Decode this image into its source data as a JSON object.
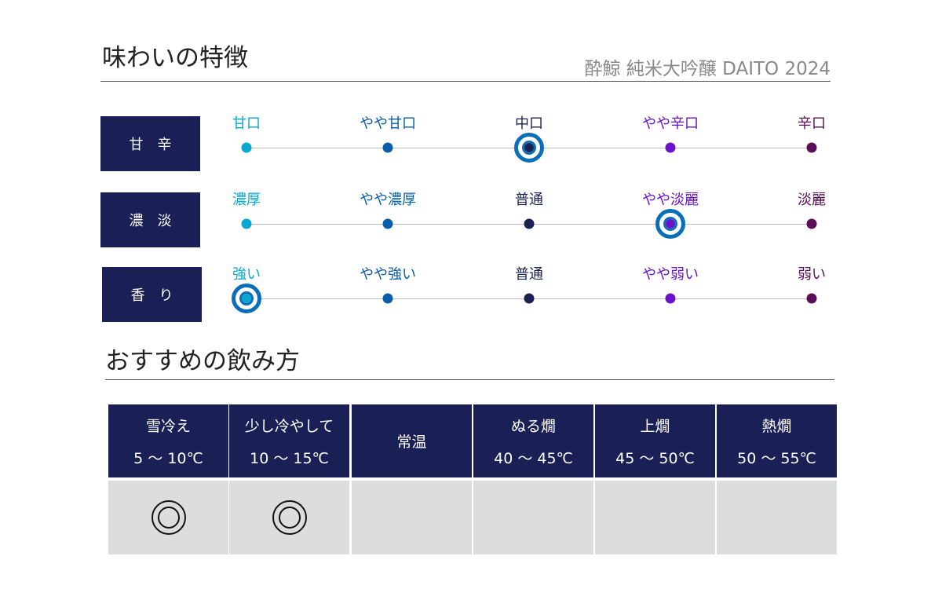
{
  "title": "味わいの特徴",
  "product": "酔鯨 純米大吟醸 DAITO 2024",
  "level_colors": [
    "#0aa7d0",
    "#0a5ea8",
    "#1a2255",
    "#6a12c8",
    "#5a0f5a"
  ],
  "taste_rows": [
    {
      "label": "甘辛",
      "scale": [
        "甘口",
        "やや甘口",
        "中口",
        "やや辛口",
        "辛口"
      ],
      "selected_index": 2
    },
    {
      "label": "濃淡",
      "scale": [
        "濃厚",
        "やや濃厚",
        "普通",
        "やや淡麗",
        "淡麗"
      ],
      "selected_index": 3
    },
    {
      "label": "香り",
      "scale": [
        "強い",
        "やや強い",
        "普通",
        "やや弱い",
        "弱い"
      ],
      "selected_index": 0
    }
  ],
  "serving_title": "おすすめの飲み方",
  "serving": [
    {
      "name": "雪冷え",
      "temp": "5 ～ 10℃",
      "recommended": true
    },
    {
      "name": "少し冷やして",
      "temp": "10 ～ 15℃",
      "recommended": true
    },
    {
      "name": "常温",
      "temp": "",
      "recommended": false
    },
    {
      "name": "ぬる燗",
      "temp": "40 ～ 45℃",
      "recommended": false
    },
    {
      "name": "上燗",
      "temp": "45 ～ 50℃",
      "recommended": false
    },
    {
      "name": "熱燗",
      "temp": "50 ～ 55℃",
      "recommended": false
    }
  ]
}
